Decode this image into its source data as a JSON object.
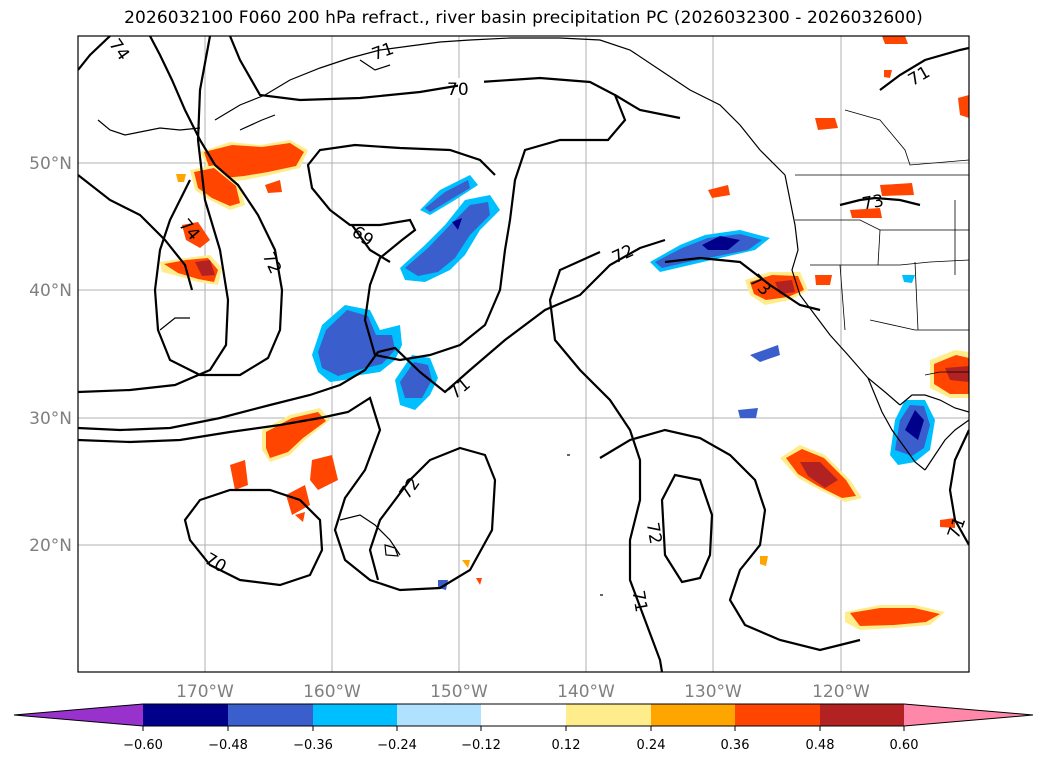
{
  "title": "2026032100 F060 200 hPa refract., river basin precipitation PC (2026032300 - 2026032600)",
  "axes": {
    "lat_labels": [
      "50°N",
      "40°N",
      "30°N",
      "20°N"
    ],
    "lon_labels": [
      "170°W",
      "160°W",
      "150°W",
      "140°W",
      "130°W",
      "120°W"
    ]
  },
  "contour_labels": [
    "74",
    "71",
    "70",
    "69",
    "72",
    "74",
    "71",
    "72",
    "72",
    "70",
    "72",
    "73",
    "73",
    "70",
    "71",
    "71",
    "71"
  ],
  "colorbar": {
    "tick_labels": [
      "−0.60",
      "−0.48",
      "−0.36",
      "−0.24",
      "−0.12",
      "0.12",
      "0.24",
      "0.36",
      "0.48",
      "0.60"
    ],
    "colors": [
      "#9932cc",
      "#00008b",
      "#3a5fcd",
      "#00bfff",
      "#b0e2ff",
      "#ffffff",
      "#ffec8b",
      "#ffa500",
      "#ff4500",
      "#b22222",
      "#ff88aa"
    ]
  },
  "colors": {
    "contour": "#000000",
    "gridline": "#b0b0b0",
    "coast": "#000000"
  }
}
